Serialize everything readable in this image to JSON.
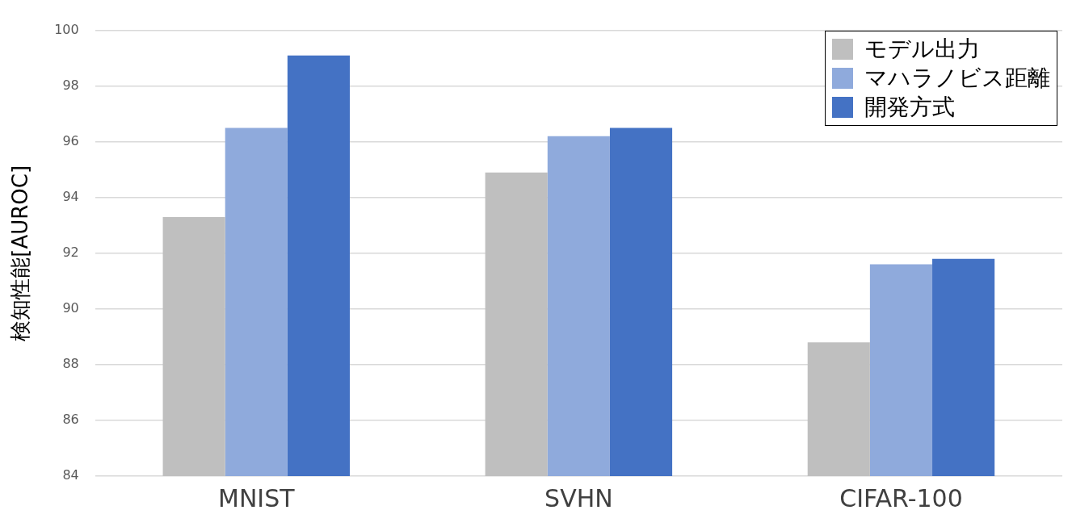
{
  "chart_data": {
    "type": "bar",
    "ylabel": "検知性能[AUROC]",
    "categories": [
      "MNIST",
      "SVHN",
      "CIFAR-100"
    ],
    "series": [
      {
        "name": "モデル出力",
        "color": "#bfbfbf",
        "values": [
          93.3,
          94.9,
          88.8
        ]
      },
      {
        "name": "マハラノビス距離",
        "color": "#8faadc",
        "values": [
          96.5,
          96.2,
          91.6
        ]
      },
      {
        "name": "開発方式",
        "color": "#4472c4",
        "values": [
          99.1,
          96.5,
          91.8
        ]
      }
    ],
    "ylim": [
      84,
      100
    ],
    "yticks": [
      84,
      86,
      88,
      90,
      92,
      94,
      96,
      98,
      100
    ],
    "grid": "y",
    "legend": "top right"
  }
}
